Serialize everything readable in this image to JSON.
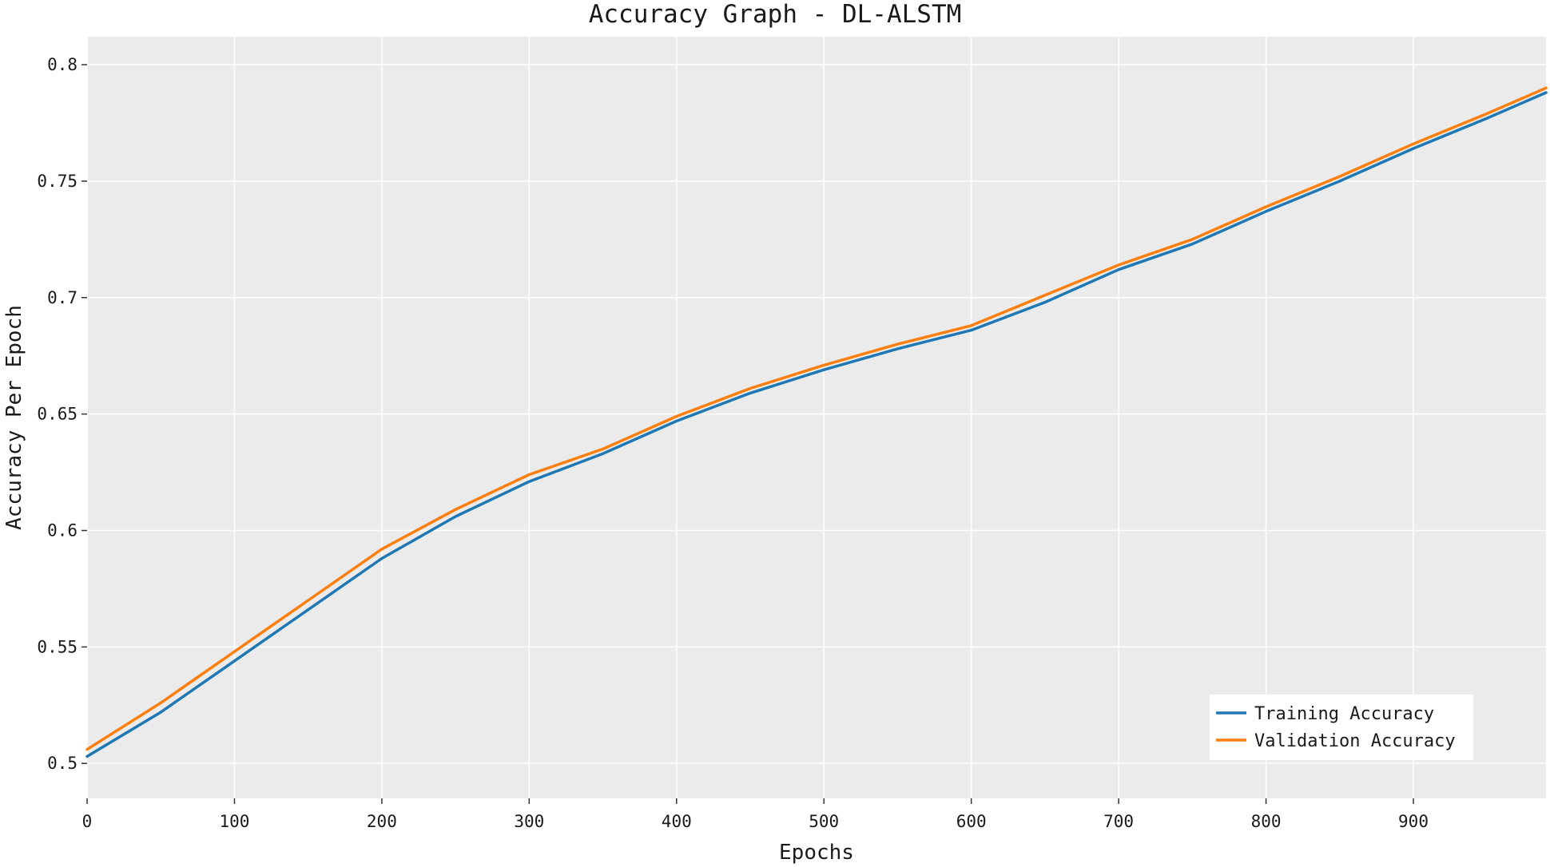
{
  "chart_data": {
    "type": "line",
    "title": "Accuracy Graph - DL-ALSTM",
    "xlabel": "Epochs",
    "ylabel": "Accuracy Per Epoch",
    "xlim": [
      0,
      990
    ],
    "ylim": [
      0.485,
      0.812
    ],
    "xticks": [
      0,
      100,
      200,
      300,
      400,
      500,
      600,
      700,
      800,
      900
    ],
    "xtick_labels": [
      "0",
      "100",
      "200",
      "300",
      "400",
      "500",
      "600",
      "700",
      "800",
      "900"
    ],
    "yticks": [
      0.5,
      0.55,
      0.6,
      0.65,
      0.7,
      0.75,
      0.8
    ],
    "ytick_labels": [
      "0.5",
      "0.55",
      "0.6",
      "0.65",
      "0.7",
      "0.75",
      "0.8"
    ],
    "grid": true,
    "legend_position": "bottom-right",
    "x": [
      0,
      50,
      100,
      150,
      200,
      250,
      300,
      350,
      400,
      450,
      500,
      550,
      600,
      650,
      700,
      750,
      800,
      850,
      900,
      950,
      990
    ],
    "series": [
      {
        "name": "Training Accuracy",
        "color": "#1f77b4",
        "values": [
          0.503,
          0.522,
          0.544,
          0.566,
          0.588,
          0.606,
          0.621,
          0.633,
          0.647,
          0.659,
          0.669,
          0.678,
          0.686,
          0.698,
          0.712,
          0.723,
          0.737,
          0.75,
          0.764,
          0.777,
          0.788
        ]
      },
      {
        "name": "Validation Accuracy",
        "color": "#ff7f0e",
        "values": [
          0.506,
          0.526,
          0.548,
          0.57,
          0.592,
          0.609,
          0.624,
          0.635,
          0.649,
          0.661,
          0.671,
          0.68,
          0.688,
          0.701,
          0.714,
          0.725,
          0.739,
          0.752,
          0.766,
          0.779,
          0.79
        ]
      }
    ]
  }
}
